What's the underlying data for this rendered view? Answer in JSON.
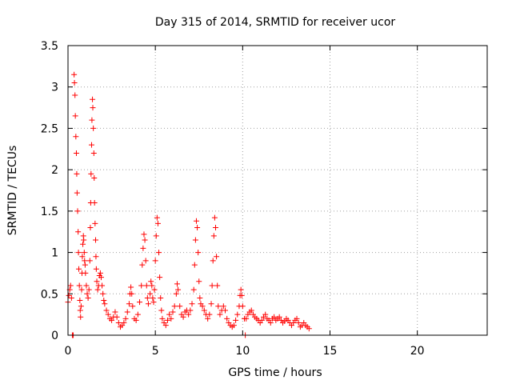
{
  "chart_data": {
    "type": "scatter",
    "title": "Day 315 of 2014, SRMTID for receiver ucor",
    "xlabel": "GPS time / hours",
    "ylabel": "SRMTID / TECUs",
    "xlim": [
      0,
      24
    ],
    "ylim": [
      0,
      3.5
    ],
    "xticks": [
      0,
      5,
      10,
      15,
      20
    ],
    "xtick_labels": [
      "0",
      "5",
      "10",
      "15",
      "20"
    ],
    "yticks": [
      0,
      0.5,
      1,
      1.5,
      2,
      2.5,
      3,
      3.5
    ],
    "ytick_labels": [
      "0",
      "0.5",
      "1",
      "1.5",
      "2",
      "2.5",
      "3",
      "3.5"
    ],
    "grid": true,
    "marker": "+",
    "color": "#ff0000",
    "series": [
      {
        "name": "SRMTID",
        "points": [
          [
            0.0,
            0.4
          ],
          [
            0.05,
            0.48
          ],
          [
            0.1,
            0.55
          ],
          [
            0.15,
            0.6
          ],
          [
            0.2,
            0.45
          ],
          [
            0.25,
            0.0
          ],
          [
            0.3,
            0.0
          ],
          [
            0.35,
            3.15
          ],
          [
            0.37,
            3.05
          ],
          [
            0.4,
            2.9
          ],
          [
            0.42,
            2.65
          ],
          [
            0.45,
            2.4
          ],
          [
            0.48,
            2.2
          ],
          [
            0.5,
            1.95
          ],
          [
            0.52,
            1.72
          ],
          [
            0.55,
            1.5
          ],
          [
            0.58,
            1.25
          ],
          [
            0.6,
            1.0
          ],
          [
            0.62,
            0.8
          ],
          [
            0.65,
            0.6
          ],
          [
            0.68,
            0.42
          ],
          [
            0.7,
            0.3
          ],
          [
            0.72,
            0.22
          ],
          [
            0.75,
            0.35
          ],
          [
            0.78,
            0.55
          ],
          [
            0.8,
            0.75
          ],
          [
            0.82,
            0.95
          ],
          [
            0.85,
            1.1
          ],
          [
            0.88,
            1.2
          ],
          [
            0.9,
            1.15
          ],
          [
            0.93,
            1.0
          ],
          [
            0.95,
            0.9
          ],
          [
            0.98,
            0.85
          ],
          [
            1.0,
            0.75
          ],
          [
            1.05,
            0.6
          ],
          [
            1.1,
            0.5
          ],
          [
            1.15,
            0.45
          ],
          [
            1.2,
            0.55
          ],
          [
            1.25,
            0.9
          ],
          [
            1.28,
            1.3
          ],
          [
            1.3,
            1.6
          ],
          [
            1.32,
            1.95
          ],
          [
            1.35,
            2.3
          ],
          [
            1.37,
            2.6
          ],
          [
            1.4,
            2.85
          ],
          [
            1.42,
            2.75
          ],
          [
            1.45,
            2.5
          ],
          [
            1.48,
            2.2
          ],
          [
            1.5,
            1.9
          ],
          [
            1.52,
            1.6
          ],
          [
            1.55,
            1.35
          ],
          [
            1.58,
            1.15
          ],
          [
            1.6,
            0.95
          ],
          [
            1.62,
            0.8
          ],
          [
            1.65,
            0.65
          ],
          [
            1.7,
            0.55
          ],
          [
            1.75,
            0.6
          ],
          [
            1.8,
            0.72
          ],
          [
            1.85,
            0.75
          ],
          [
            1.9,
            0.7
          ],
          [
            1.95,
            0.6
          ],
          [
            2.0,
            0.5
          ],
          [
            2.05,
            0.42
          ],
          [
            2.1,
            0.38
          ],
          [
            2.2,
            0.3
          ],
          [
            2.3,
            0.25
          ],
          [
            2.4,
            0.2
          ],
          [
            2.5,
            0.18
          ],
          [
            2.6,
            0.22
          ],
          [
            2.7,
            0.28
          ],
          [
            2.8,
            0.22
          ],
          [
            2.9,
            0.15
          ],
          [
            3.0,
            0.1
          ],
          [
            3.1,
            0.12
          ],
          [
            3.2,
            0.15
          ],
          [
            3.3,
            0.2
          ],
          [
            3.4,
            0.28
          ],
          [
            3.5,
            0.38
          ],
          [
            3.55,
            0.5
          ],
          [
            3.6,
            0.58
          ],
          [
            3.65,
            0.5
          ],
          [
            3.7,
            0.35
          ],
          [
            3.8,
            0.2
          ],
          [
            3.9,
            0.18
          ],
          [
            4.0,
            0.25
          ],
          [
            4.1,
            0.4
          ],
          [
            4.2,
            0.6
          ],
          [
            4.25,
            0.85
          ],
          [
            4.3,
            1.05
          ],
          [
            4.35,
            1.22
          ],
          [
            4.4,
            1.15
          ],
          [
            4.45,
            0.9
          ],
          [
            4.5,
            0.6
          ],
          [
            4.55,
            0.45
          ],
          [
            4.6,
            0.38
          ],
          [
            4.7,
            0.5
          ],
          [
            4.75,
            0.65
          ],
          [
            4.8,
            0.6
          ],
          [
            4.85,
            0.45
          ],
          [
            4.9,
            0.4
          ],
          [
            4.95,
            0.55
          ],
          [
            5.0,
            0.9
          ],
          [
            5.05,
            1.2
          ],
          [
            5.1,
            1.42
          ],
          [
            5.15,
            1.35
          ],
          [
            5.2,
            1.0
          ],
          [
            5.25,
            0.7
          ],
          [
            5.3,
            0.45
          ],
          [
            5.35,
            0.3
          ],
          [
            5.4,
            0.2
          ],
          [
            5.5,
            0.15
          ],
          [
            5.6,
            0.12
          ],
          [
            5.7,
            0.18
          ],
          [
            5.8,
            0.25
          ],
          [
            5.9,
            0.2
          ],
          [
            6.0,
            0.28
          ],
          [
            6.1,
            0.35
          ],
          [
            6.2,
            0.5
          ],
          [
            6.25,
            0.62
          ],
          [
            6.3,
            0.55
          ],
          [
            6.4,
            0.35
          ],
          [
            6.5,
            0.25
          ],
          [
            6.6,
            0.22
          ],
          [
            6.7,
            0.28
          ],
          [
            6.8,
            0.3
          ],
          [
            6.9,
            0.25
          ],
          [
            7.0,
            0.3
          ],
          [
            7.1,
            0.38
          ],
          [
            7.2,
            0.55
          ],
          [
            7.25,
            0.85
          ],
          [
            7.3,
            1.15
          ],
          [
            7.35,
            1.38
          ],
          [
            7.4,
            1.3
          ],
          [
            7.45,
            1.0
          ],
          [
            7.5,
            0.65
          ],
          [
            7.55,
            0.45
          ],
          [
            7.6,
            0.38
          ],
          [
            7.7,
            0.35
          ],
          [
            7.8,
            0.3
          ],
          [
            7.9,
            0.25
          ],
          [
            8.0,
            0.2
          ],
          [
            8.1,
            0.25
          ],
          [
            8.2,
            0.38
          ],
          [
            8.25,
            0.6
          ],
          [
            8.3,
            0.9
          ],
          [
            8.35,
            1.2
          ],
          [
            8.4,
            1.42
          ],
          [
            8.45,
            1.3
          ],
          [
            8.5,
            0.95
          ],
          [
            8.55,
            0.6
          ],
          [
            8.6,
            0.35
          ],
          [
            8.7,
            0.25
          ],
          [
            8.8,
            0.3
          ],
          [
            8.9,
            0.35
          ],
          [
            9.0,
            0.3
          ],
          [
            9.1,
            0.2
          ],
          [
            9.2,
            0.15
          ],
          [
            9.3,
            0.12
          ],
          [
            9.4,
            0.1
          ],
          [
            9.5,
            0.12
          ],
          [
            9.6,
            0.18
          ],
          [
            9.7,
            0.25
          ],
          [
            9.8,
            0.35
          ],
          [
            9.85,
            0.48
          ],
          [
            9.9,
            0.55
          ],
          [
            9.95,
            0.48
          ],
          [
            10.0,
            0.35
          ],
          [
            10.1,
            0.2
          ],
          [
            10.15,
            0.0
          ],
          [
            10.2,
            0.2
          ],
          [
            10.3,
            0.25
          ],
          [
            10.4,
            0.28
          ],
          [
            10.5,
            0.3
          ],
          [
            10.6,
            0.25
          ],
          [
            10.7,
            0.22
          ],
          [
            10.8,
            0.2
          ],
          [
            10.9,
            0.18
          ],
          [
            11.0,
            0.15
          ],
          [
            11.1,
            0.18
          ],
          [
            11.2,
            0.22
          ],
          [
            11.3,
            0.25
          ],
          [
            11.4,
            0.2
          ],
          [
            11.5,
            0.18
          ],
          [
            11.6,
            0.15
          ],
          [
            11.7,
            0.2
          ],
          [
            11.8,
            0.22
          ],
          [
            11.9,
            0.18
          ],
          [
            12.0,
            0.2
          ],
          [
            12.1,
            0.22
          ],
          [
            12.2,
            0.18
          ],
          [
            12.3,
            0.15
          ],
          [
            12.4,
            0.17
          ],
          [
            12.5,
            0.2
          ],
          [
            12.6,
            0.18
          ],
          [
            12.7,
            0.15
          ],
          [
            12.8,
            0.12
          ],
          [
            12.9,
            0.15
          ],
          [
            13.0,
            0.18
          ],
          [
            13.1,
            0.2
          ],
          [
            13.2,
            0.15
          ],
          [
            13.3,
            0.1
          ],
          [
            13.4,
            0.12
          ],
          [
            13.5,
            0.15
          ],
          [
            13.6,
            0.12
          ],
          [
            13.7,
            0.1
          ],
          [
            13.8,
            0.08
          ]
        ]
      }
    ]
  }
}
